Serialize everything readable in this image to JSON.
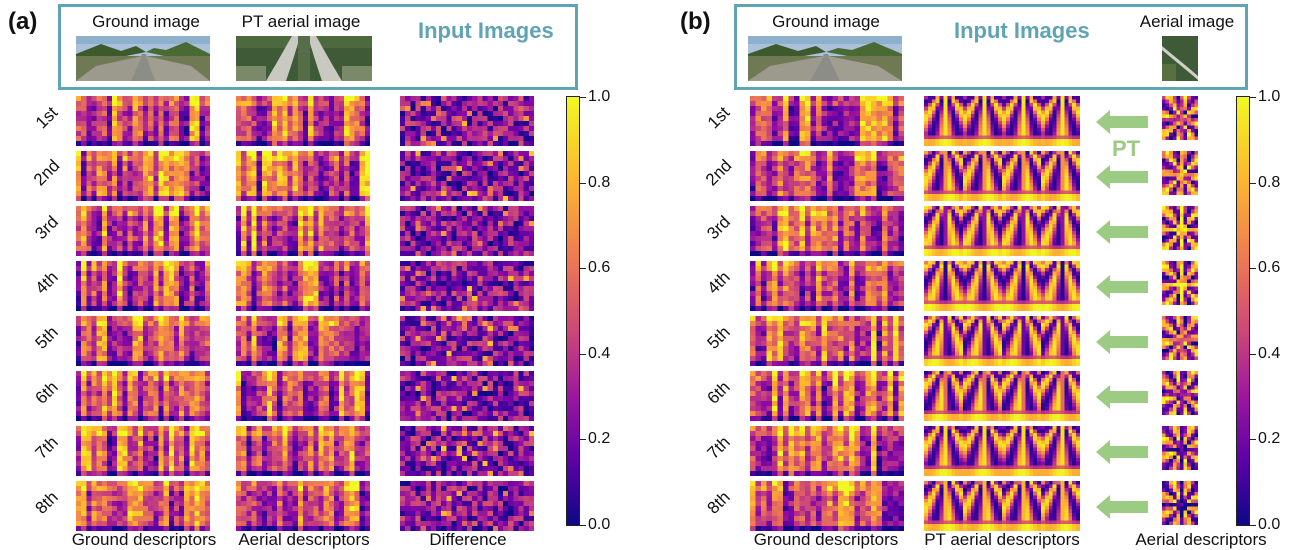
{
  "panel_a": {
    "label": "(a)",
    "input_title": "Input Images",
    "input_captions": [
      "Ground image",
      "PT aerial image"
    ],
    "row_labels": [
      "1st",
      "2nd",
      "3rd",
      "4th",
      "5th",
      "6th",
      "7th",
      "8th"
    ],
    "column_captions": [
      "Ground descriptors",
      "Aerial descriptors",
      "Difference"
    ]
  },
  "panel_b": {
    "label": "(b)",
    "input_title": "Input Images",
    "input_captions": [
      "Ground image",
      "Aerial image"
    ],
    "row_labels": [
      "1st",
      "2nd",
      "3rd",
      "4th",
      "5th",
      "6th",
      "7th",
      "8th"
    ],
    "column_captions": [
      "Ground descriptors",
      "PT aerial descriptors",
      "Aerial descriptors"
    ],
    "transform_label": "PT"
  },
  "colorbar": {
    "ticks": [
      "1.0",
      "0.8",
      "0.6",
      "0.4",
      "0.2",
      "0.0"
    ],
    "min": 0.0,
    "max": 1.0,
    "colormap": "plasma"
  },
  "colors": {
    "input_box_border": "#5fa3b4",
    "arrow": "#9ccc84"
  }
}
